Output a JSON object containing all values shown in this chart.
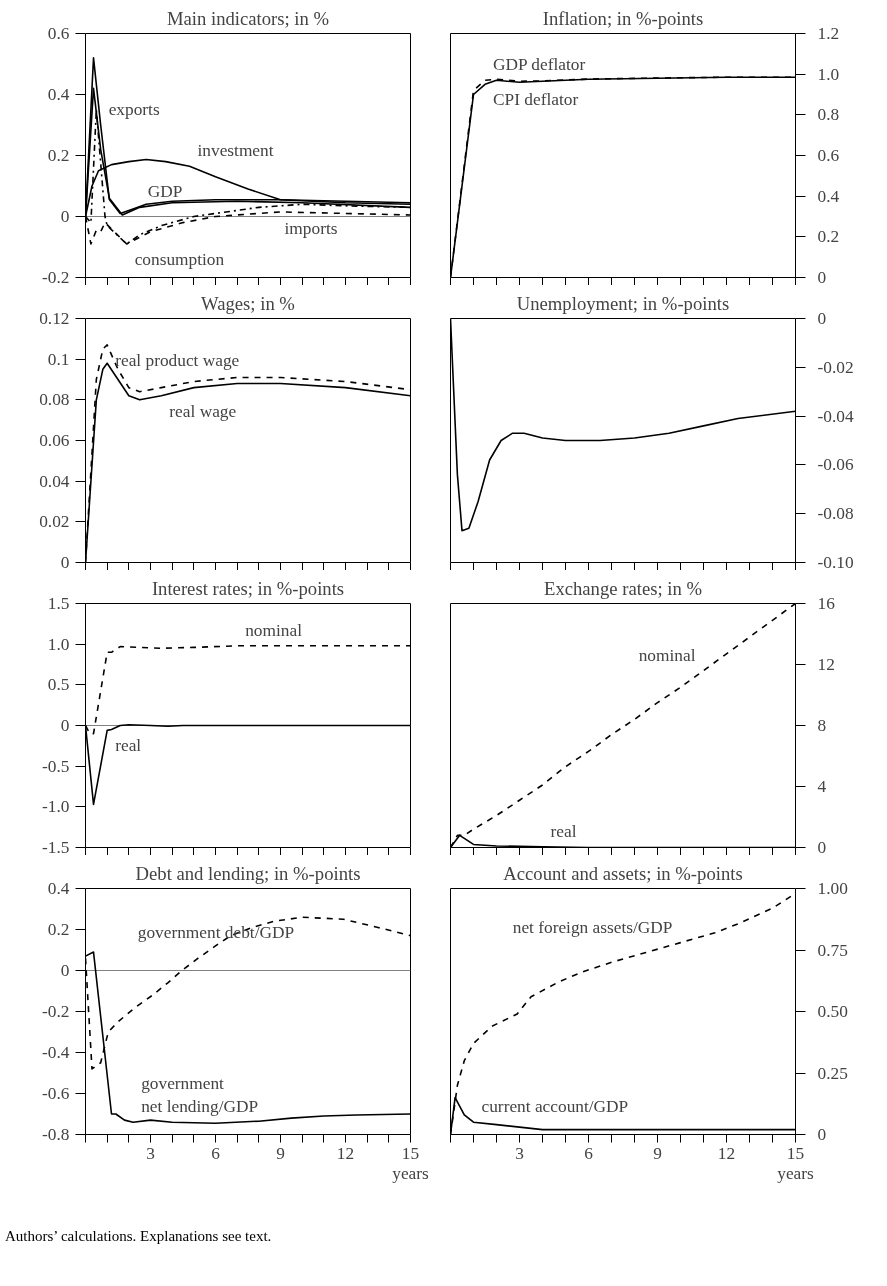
{
  "chart_data": [
    {
      "type": "line",
      "title": "Main indicators; in %",
      "xlim": [
        0,
        15
      ],
      "xticks": [
        {
          "value": 0,
          "label": null
        },
        {
          "value": 1,
          "label": null
        },
        {
          "value": 2,
          "label": null
        },
        {
          "value": 3,
          "label": null
        },
        {
          "value": 4,
          "label": null
        },
        {
          "value": 5,
          "label": null
        },
        {
          "value": 6,
          "label": null
        },
        {
          "value": 7,
          "label": null
        },
        {
          "value": 8,
          "label": null
        },
        {
          "value": 9,
          "label": null
        },
        {
          "value": 10,
          "label": null
        },
        {
          "value": 11,
          "label": null
        },
        {
          "value": 12,
          "label": null
        },
        {
          "value": 13,
          "label": null
        },
        {
          "value": 14,
          "label": null
        },
        {
          "value": 15,
          "label": null
        }
      ],
      "tick_labels": "y",
      "ylim": [
        -0.2,
        0.6
      ],
      "yticks": [
        -0.2,
        0,
        0.2,
        0.4,
        0.6
      ],
      "grid": false,
      "ref_lines": [
        {
          "axis": "y",
          "value": 0,
          "color": "#808080"
        }
      ],
      "series": [
        {
          "color": "#000000",
          "line_style": "solid",
          "x": [
            0,
            0.37,
            0.7,
            1.1,
            1.6,
            2,
            2.8,
            4,
            6,
            9,
            12,
            15
          ],
          "values": [
            0,
            0.52,
            0.3,
            0.056,
            0.01,
            0.02,
            0.04,
            0.05,
            0.055,
            0.055,
            0.05,
            0.045
          ]
        },
        {
          "color": "#000000",
          "line_style": "solid",
          "x": [
            0,
            0.37,
            0.7,
            1.1,
            1.7,
            2.5,
            4,
            7,
            10,
            15
          ],
          "values": [
            0,
            0.42,
            0.22,
            0.06,
            0.005,
            0.03,
            0.045,
            0.05,
            0.045,
            0.03
          ]
        },
        {
          "color": "#000000",
          "line_style": "solid",
          "x": [
            0,
            0.3,
            0.6,
            1.2,
            2,
            2.8,
            3.7,
            4.8,
            6,
            7.5,
            9,
            12,
            15
          ],
          "values": [
            0,
            0.1,
            0.15,
            0.17,
            0.18,
            0.187,
            0.18,
            0.165,
            0.13,
            0.09,
            0.055,
            0.045,
            0.04
          ]
        },
        {
          "color": "#000000",
          "line_style": "dashdot",
          "x": [
            0,
            0.25,
            0.5,
            0.9,
            1.0,
            1.9,
            2.5,
            3.5,
            5,
            8,
            10,
            12,
            15
          ],
          "values": [
            0,
            -0.02,
            0.35,
            0,
            -0.03,
            -0.09,
            -0.06,
            -0.03,
            0,
            0.03,
            0.04,
            0.035,
            0.03
          ]
        },
        {
          "color": "#000000",
          "line_style": "dashed",
          "x": [
            0,
            0.25,
            0.5,
            0.7,
            0.9,
            1.9,
            3,
            4.5,
            6,
            9,
            12,
            15
          ],
          "values": [
            0,
            -0.09,
            -0.045,
            -0.05,
            -0.02,
            -0.09,
            -0.05,
            -0.02,
            0,
            0.015,
            0.01,
            0.005
          ]
        }
      ],
      "annotations": [
        {
          "text": "exports",
          "x": 0.7,
          "y": 0.3
        },
        {
          "text": "investment",
          "x": 4.8,
          "y": 0.165
        },
        {
          "text": "GDP",
          "x": 2.5,
          "y": 0.03
        },
        {
          "text": "imports",
          "x": 12,
          "y": 0.01
        },
        {
          "text": "consumption",
          "x": 1.9,
          "y": -0.09
        }
      ]
    },
    {
      "type": "line",
      "title": "Inflation; in %-points",
      "xlim": [
        0,
        15
      ],
      "xticks": [
        {
          "value": 0,
          "label": null
        },
        {
          "value": 1,
          "label": null
        },
        {
          "value": 2,
          "label": null
        },
        {
          "value": 3,
          "label": null
        },
        {
          "value": 4,
          "label": null
        },
        {
          "value": 5,
          "label": null
        },
        {
          "value": 6,
          "label": null
        },
        {
          "value": 7,
          "label": null
        },
        {
          "value": 8,
          "label": null
        },
        {
          "value": 9,
          "label": null
        },
        {
          "value": 10,
          "label": null
        },
        {
          "value": 11,
          "label": null
        },
        {
          "value": 12,
          "label": null
        },
        {
          "value": 13,
          "label": null
        },
        {
          "value": 14,
          "label": null
        },
        {
          "value": 15,
          "label": null
        }
      ],
      "tick_labels": "y",
      "ylim": [
        0,
        1.2
      ],
      "yticks": [
        0,
        0.2,
        0.4,
        0.6,
        0.8,
        {
          "value": 1,
          "label": "1.0"
        },
        1.2
      ],
      "grid": false,
      "series": [
        {
          "color": "#000000",
          "line_style": "solid",
          "x": [
            0,
            1,
            1.5,
            2,
            3,
            4,
            6,
            9,
            12,
            15
          ],
          "values": [
            0,
            0.9,
            0.95,
            0.97,
            0.96,
            0.965,
            0.975,
            0.98,
            0.985,
            0.985
          ]
        },
        {
          "color": "#000000",
          "line_style": "dashed",
          "x": [
            0,
            1,
            1.5,
            2,
            3,
            4,
            6,
            9,
            12,
            15
          ],
          "values": [
            0,
            0.92,
            0.97,
            0.975,
            0.965,
            0.967,
            0.976,
            0.981,
            0.985,
            0.985
          ]
        }
      ],
      "annotations": [
        {
          "text": "GDP deflator",
          "x": 1.5,
          "y": 0.97
        },
        {
          "text": "CPI deflator",
          "x": 1.5,
          "y": 0.95
        }
      ]
    },
    {
      "type": "line",
      "title": "Wages; in %",
      "xlim": [
        0,
        15
      ],
      "xticks": [
        {
          "value": 0,
          "label": null
        },
        {
          "value": 1,
          "label": null
        },
        {
          "value": 2,
          "label": null
        },
        {
          "value": 3,
          "label": null
        },
        {
          "value": 4,
          "label": null
        },
        {
          "value": 5,
          "label": null
        },
        {
          "value": 6,
          "label": null
        },
        {
          "value": 7,
          "label": null
        },
        {
          "value": 8,
          "label": null
        },
        {
          "value": 9,
          "label": null
        },
        {
          "value": 10,
          "label": null
        },
        {
          "value": 11,
          "label": null
        },
        {
          "value": 12,
          "label": null
        },
        {
          "value": 13,
          "label": null
        },
        {
          "value": 14,
          "label": null
        },
        {
          "value": 15,
          "label": null
        }
      ],
      "tick_labels": "y",
      "ylim": [
        0,
        0.12
      ],
      "yticks": [
        0,
        0.02,
        0.04,
        0.06,
        0.08,
        0.1,
        0.12
      ],
      "grid": false,
      "series": [
        {
          "color": "#000000",
          "line_style": "solid",
          "x": [
            0,
            0.5,
            0.8,
            1,
            1.5,
            2,
            2.5,
            3.5,
            5,
            7,
            9,
            12,
            15
          ],
          "values": [
            0,
            0.08,
            0.095,
            0.098,
            0.09,
            0.082,
            0.08,
            0.082,
            0.086,
            0.088,
            0.088,
            0.086,
            0.082
          ]
        },
        {
          "color": "#000000",
          "line_style": "dashed",
          "x": [
            0,
            0.5,
            0.8,
            1,
            1.5,
            2,
            2.5,
            3.5,
            5,
            7,
            9,
            12,
            15
          ],
          "values": [
            0,
            0.09,
            0.105,
            0.107,
            0.095,
            0.086,
            0.084,
            0.086,
            0.089,
            0.091,
            0.091,
            0.089,
            0.085
          ]
        }
      ],
      "annotations": [
        {
          "text": "real product wage",
          "x": 1,
          "y": 0.107
        },
        {
          "text": "real wage",
          "x": 3.5,
          "y": 0.082
        }
      ]
    },
    {
      "type": "line",
      "title": "Unemployment; in %-points",
      "xlim": [
        0,
        15
      ],
      "xticks": [
        {
          "value": 0,
          "label": null
        },
        {
          "value": 1,
          "label": null
        },
        {
          "value": 2,
          "label": null
        },
        {
          "value": 3,
          "label": null
        },
        {
          "value": 4,
          "label": null
        },
        {
          "value": 5,
          "label": null
        },
        {
          "value": 6,
          "label": null
        },
        {
          "value": 7,
          "label": null
        },
        {
          "value": 8,
          "label": null
        },
        {
          "value": 9,
          "label": null
        },
        {
          "value": 10,
          "label": null
        },
        {
          "value": 11,
          "label": null
        },
        {
          "value": 12,
          "label": null
        },
        {
          "value": 13,
          "label": null
        },
        {
          "value": 14,
          "label": null
        },
        {
          "value": 15,
          "label": null
        }
      ],
      "tick_labels": "y",
      "ylim": [
        -0.1,
        0
      ],
      "yticks": [
        {
          "value": -0.1,
          "label": "-0.10"
        },
        -0.08,
        -0.06,
        -0.04,
        -0.02,
        0
      ],
      "grid": false,
      "series": [
        {
          "color": "#000000",
          "line_style": "solid",
          "x": [
            0,
            0.3,
            0.5,
            0.8,
            1.2,
            1.7,
            2.2,
            2.7,
            3.2,
            4,
            5,
            6.5,
            8,
            9.5,
            11,
            12.5,
            15
          ],
          "values": [
            0,
            -0.064,
            -0.087,
            -0.086,
            -0.075,
            -0.058,
            -0.05,
            -0.047,
            -0.047,
            -0.049,
            -0.05,
            -0.05,
            -0.049,
            -0.047,
            -0.044,
            -0.041,
            -0.038
          ]
        }
      ]
    },
    {
      "type": "line",
      "title": "Interest rates; in %-points",
      "xlim": [
        0,
        15
      ],
      "xticks": [
        {
          "value": 0,
          "label": null
        },
        {
          "value": 1,
          "label": null
        },
        {
          "value": 2,
          "label": null
        },
        {
          "value": 3,
          "label": null
        },
        {
          "value": 4,
          "label": null
        },
        {
          "value": 5,
          "label": null
        },
        {
          "value": 6,
          "label": null
        },
        {
          "value": 7,
          "label": null
        },
        {
          "value": 8,
          "label": null
        },
        {
          "value": 9,
          "label": null
        },
        {
          "value": 10,
          "label": null
        },
        {
          "value": 11,
          "label": null
        },
        {
          "value": 12,
          "label": null
        },
        {
          "value": 13,
          "label": null
        },
        {
          "value": 14,
          "label": null
        },
        {
          "value": 15,
          "label": null
        }
      ],
      "tick_labels": "y",
      "ylim": [
        -1.5,
        1.5
      ],
      "yticks": [
        -1.5,
        {
          "value": -1,
          "label": "-1.0"
        },
        -0.5,
        0,
        0.5,
        {
          "value": 1,
          "label": "1.0"
        },
        1.5
      ],
      "grid": false,
      "ref_lines": [
        {
          "axis": "y",
          "value": 0,
          "color": "#808080"
        }
      ],
      "series": [
        {
          "color": "#000000",
          "line_style": "dashed",
          "x": [
            0,
            0.2,
            0.37,
            1.0,
            1.2,
            1.6,
            2.5,
            3.5,
            5,
            7,
            15
          ],
          "values": [
            0,
            -0.1,
            -0.1,
            0.9,
            0.9,
            0.97,
            0.96,
            0.95,
            0.96,
            0.98,
            0.98
          ]
        },
        {
          "color": "#000000",
          "line_style": "solid",
          "x": [
            0,
            0.37,
            1.0,
            1.2,
            1.6,
            2,
            3,
            3.8,
            4.5,
            15
          ],
          "values": [
            0,
            -0.97,
            -0.06,
            -0.05,
            0,
            0.01,
            0,
            -0.01,
            0,
            0
          ]
        }
      ],
      "annotations": [
        {
          "text": "nominal",
          "x": 7,
          "y": 0.98
        },
        {
          "text": "real",
          "x": 1.0,
          "y": -0.06
        }
      ]
    },
    {
      "type": "line",
      "title": "Exchange rates; in %",
      "xlim": [
        0,
        15
      ],
      "xticks": [
        {
          "value": 0,
          "label": null
        },
        {
          "value": 1,
          "label": null
        },
        {
          "value": 2,
          "label": null
        },
        {
          "value": 3,
          "label": null
        },
        {
          "value": 4,
          "label": null
        },
        {
          "value": 5,
          "label": null
        },
        {
          "value": 6,
          "label": null
        },
        {
          "value": 7,
          "label": null
        },
        {
          "value": 8,
          "label": null
        },
        {
          "value": 9,
          "label": null
        },
        {
          "value": 10,
          "label": null
        },
        {
          "value": 11,
          "label": null
        },
        {
          "value": 12,
          "label": null
        },
        {
          "value": 13,
          "label": null
        },
        {
          "value": 14,
          "label": null
        },
        {
          "value": 15,
          "label": null
        }
      ],
      "tick_labels": "y",
      "ylim": [
        0,
        16
      ],
      "yticks": [
        0,
        4,
        8,
        12,
        16
      ],
      "grid": false,
      "series": [
        {
          "color": "#000000",
          "line_style": "dashed",
          "x": [
            0,
            0.3,
            0.6,
            1,
            2,
            3,
            4,
            5,
            6,
            7,
            8,
            9,
            10,
            11,
            12,
            13,
            14,
            15
          ],
          "values": [
            0,
            0.8,
            0.8,
            1.2,
            2.1,
            3.1,
            4.1,
            5.3,
            6.3,
            7.4,
            8.4,
            9.5,
            10.5,
            11.6,
            12.7,
            13.8,
            14.9,
            16
          ]
        },
        {
          "color": "#000000",
          "line_style": "solid",
          "x": [
            0,
            0.4,
            1,
            2,
            4,
            6,
            15
          ],
          "values": [
            0,
            0.8,
            0.2,
            0.1,
            0.05,
            0,
            0
          ]
        }
      ],
      "annotations": [
        {
          "text": "nominal",
          "x": 11,
          "y": 11.6
        },
        {
          "text": "real",
          "x": 4,
          "y": 0.05
        }
      ]
    },
    {
      "type": "line",
      "title": "Debt and lending; in %-points",
      "xlabel": "years",
      "xlim": [
        0,
        15
      ],
      "xticks": [
        {
          "value": 0,
          "label": null
        },
        {
          "value": 1,
          "label": null
        },
        {
          "value": 2,
          "label": null
        },
        3,
        {
          "value": 4,
          "label": null
        },
        {
          "value": 5,
          "label": null
        },
        6,
        {
          "value": 7,
          "label": null
        },
        {
          "value": 8,
          "label": null
        },
        9,
        {
          "value": 10,
          "label": null
        },
        {
          "value": 11,
          "label": null
        },
        12,
        {
          "value": 13,
          "label": null
        },
        {
          "value": 14,
          "label": null
        },
        15
      ],
      "ylim": [
        -0.8,
        0.4
      ],
      "yticks": [
        -0.8,
        -0.6,
        -0.4,
        -0.2,
        0,
        0.2,
        0.4
      ],
      "grid": false,
      "ref_lines": [
        {
          "axis": "y",
          "value": 0,
          "color": "#808080"
        }
      ],
      "series": [
        {
          "color": "#000000",
          "line_style": "dashed",
          "x": [
            0,
            0.3,
            0.7,
            1.05,
            1.5,
            2.3,
            3.1,
            3.8,
            4.45,
            5.2,
            6,
            6.7,
            7.7,
            8.7,
            10,
            11.9,
            13.5,
            15
          ],
          "values": [
            0.06,
            -0.48,
            -0.45,
            -0.3,
            -0.25,
            -0.18,
            -0.12,
            -0.06,
            0,
            0.06,
            0.12,
            0.17,
            0.21,
            0.24,
            0.26,
            0.25,
            0.21,
            0.17
          ]
        },
        {
          "color": "#000000",
          "line_style": "solid",
          "x": [
            0,
            0.37,
            1.2,
            1.4,
            1.8,
            2.2,
            3,
            4,
            6,
            8,
            9.5,
            11,
            12.5,
            15
          ],
          "values": [
            0.07,
            0.09,
            -0.7,
            -0.7,
            -0.73,
            -0.74,
            -0.73,
            -0.74,
            -0.745,
            -0.735,
            -0.72,
            -0.71,
            -0.705,
            -0.7
          ]
        }
      ],
      "annotations": [
        {
          "text": "government debt/GDP",
          "x": 10,
          "y": 0.26
        },
        {
          "text": "government\nnet lending/GDP",
          "x": 2.2,
          "y": -0.74
        }
      ]
    },
    {
      "type": "line",
      "title": "Account and assets; in %-points",
      "xlabel": "years",
      "xlim": [
        0,
        15
      ],
      "xticks": [
        {
          "value": 0,
          "label": null
        },
        {
          "value": 1,
          "label": null
        },
        {
          "value": 2,
          "label": null
        },
        3,
        {
          "value": 4,
          "label": null
        },
        {
          "value": 5,
          "label": null
        },
        6,
        {
          "value": 7,
          "label": null
        },
        {
          "value": 8,
          "label": null
        },
        9,
        {
          "value": 10,
          "label": null
        },
        {
          "value": 11,
          "label": null
        },
        12,
        {
          "value": 13,
          "label": null
        },
        {
          "value": 14,
          "label": null
        },
        15
      ],
      "ylim": [
        0,
        1
      ],
      "yticks": [
        0,
        0.25,
        {
          "value": 0.5,
          "label": "0.50"
        },
        0.75,
        {
          "value": 1,
          "label": "1.00"
        }
      ],
      "grid": false,
      "series": [
        {
          "color": "#000000",
          "line_style": "dashed",
          "x": [
            0,
            0.3,
            0.6,
            1,
            1.8,
            2.9,
            3.5,
            4.7,
            5.7,
            7,
            8.5,
            10,
            11.5,
            12.6,
            14,
            15
          ],
          "values": [
            0,
            0.2,
            0.3,
            0.37,
            0.44,
            0.49,
            0.56,
            0.62,
            0.66,
            0.7,
            0.74,
            0.78,
            0.82,
            0.86,
            0.92,
            0.98
          ]
        },
        {
          "color": "#000000",
          "line_style": "solid",
          "x": [
            0,
            0.2,
            0.6,
            1,
            2,
            3,
            4,
            8,
            15
          ],
          "values": [
            0,
            0.15,
            0.08,
            0.05,
            0.04,
            0.03,
            0.02,
            0.02,
            0.02
          ]
        }
      ],
      "annotations": [
        {
          "text": "net foreign assets/GDP",
          "x": 10,
          "y": 0.78
        },
        {
          "text": "current account/GDP",
          "x": 1,
          "y": 0.05
        },
        "Authors’ calculations. Explanations see text."
      ]
    }
  ]
}
